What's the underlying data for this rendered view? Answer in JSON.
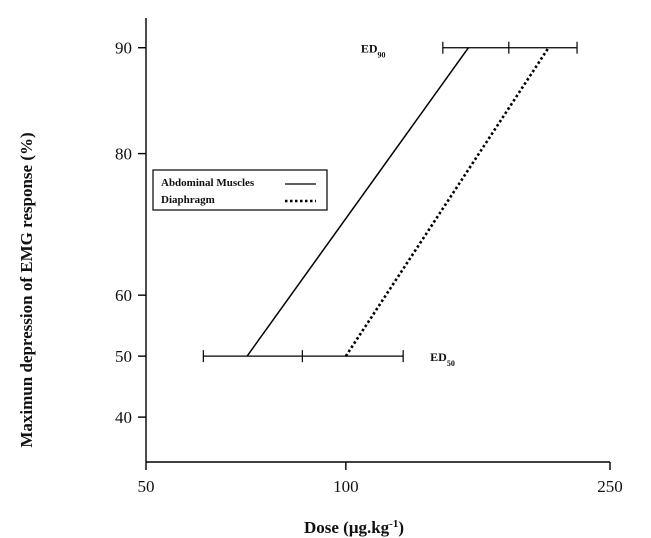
{
  "chart_data": {
    "type": "line",
    "title": "",
    "xlabel": "Dose (",
    "xlabel_unit": "μg.kg",
    "xlabel_sup": "-1",
    "xlabel_close": ")",
    "ylabel": "Maximun depression of EMG response (%)",
    "x_scale": "log",
    "y_scale": "probit",
    "xlim": [
      50,
      250
    ],
    "ylim": [
      33,
      92
    ],
    "x_ticks": [
      {
        "value": 50,
        "label": "50"
      },
      {
        "value": 100,
        "label": "100"
      },
      {
        "value": 250,
        "label": "250"
      }
    ],
    "y_ticks": [
      {
        "value": 40,
        "label": "40"
      },
      {
        "value": 50,
        "label": "50"
      },
      {
        "value": 60,
        "label": "60"
      },
      {
        "value": 80,
        "label": "80"
      },
      {
        "value": 90,
        "label": "90"
      }
    ],
    "grid": false,
    "legend": {
      "placement": "upper-left",
      "entries": [
        {
          "label": "Abdominal Muscles",
          "style": "solid"
        },
        {
          "label": "Diaphragm",
          "style": "dotted"
        }
      ]
    },
    "series": [
      {
        "name": "Abdominal Muscles",
        "style": "solid",
        "color": "#000000",
        "points": [
          [
            71,
            50
          ],
          [
            153,
            90
          ]
        ]
      },
      {
        "name": "Diaphragm",
        "style": "dotted",
        "color": "#000000",
        "points": [
          [
            100,
            50
          ],
          [
            202,
            90
          ]
        ]
      }
    ],
    "error_bars": [
      {
        "level": 50,
        "min": 61,
        "center": 86,
        "max": 122,
        "label": "ED",
        "label_sub": "50"
      },
      {
        "level": 90,
        "min": 140,
        "center": 176,
        "max": 223,
        "label": "ED",
        "label_sub": "90"
      }
    ]
  }
}
